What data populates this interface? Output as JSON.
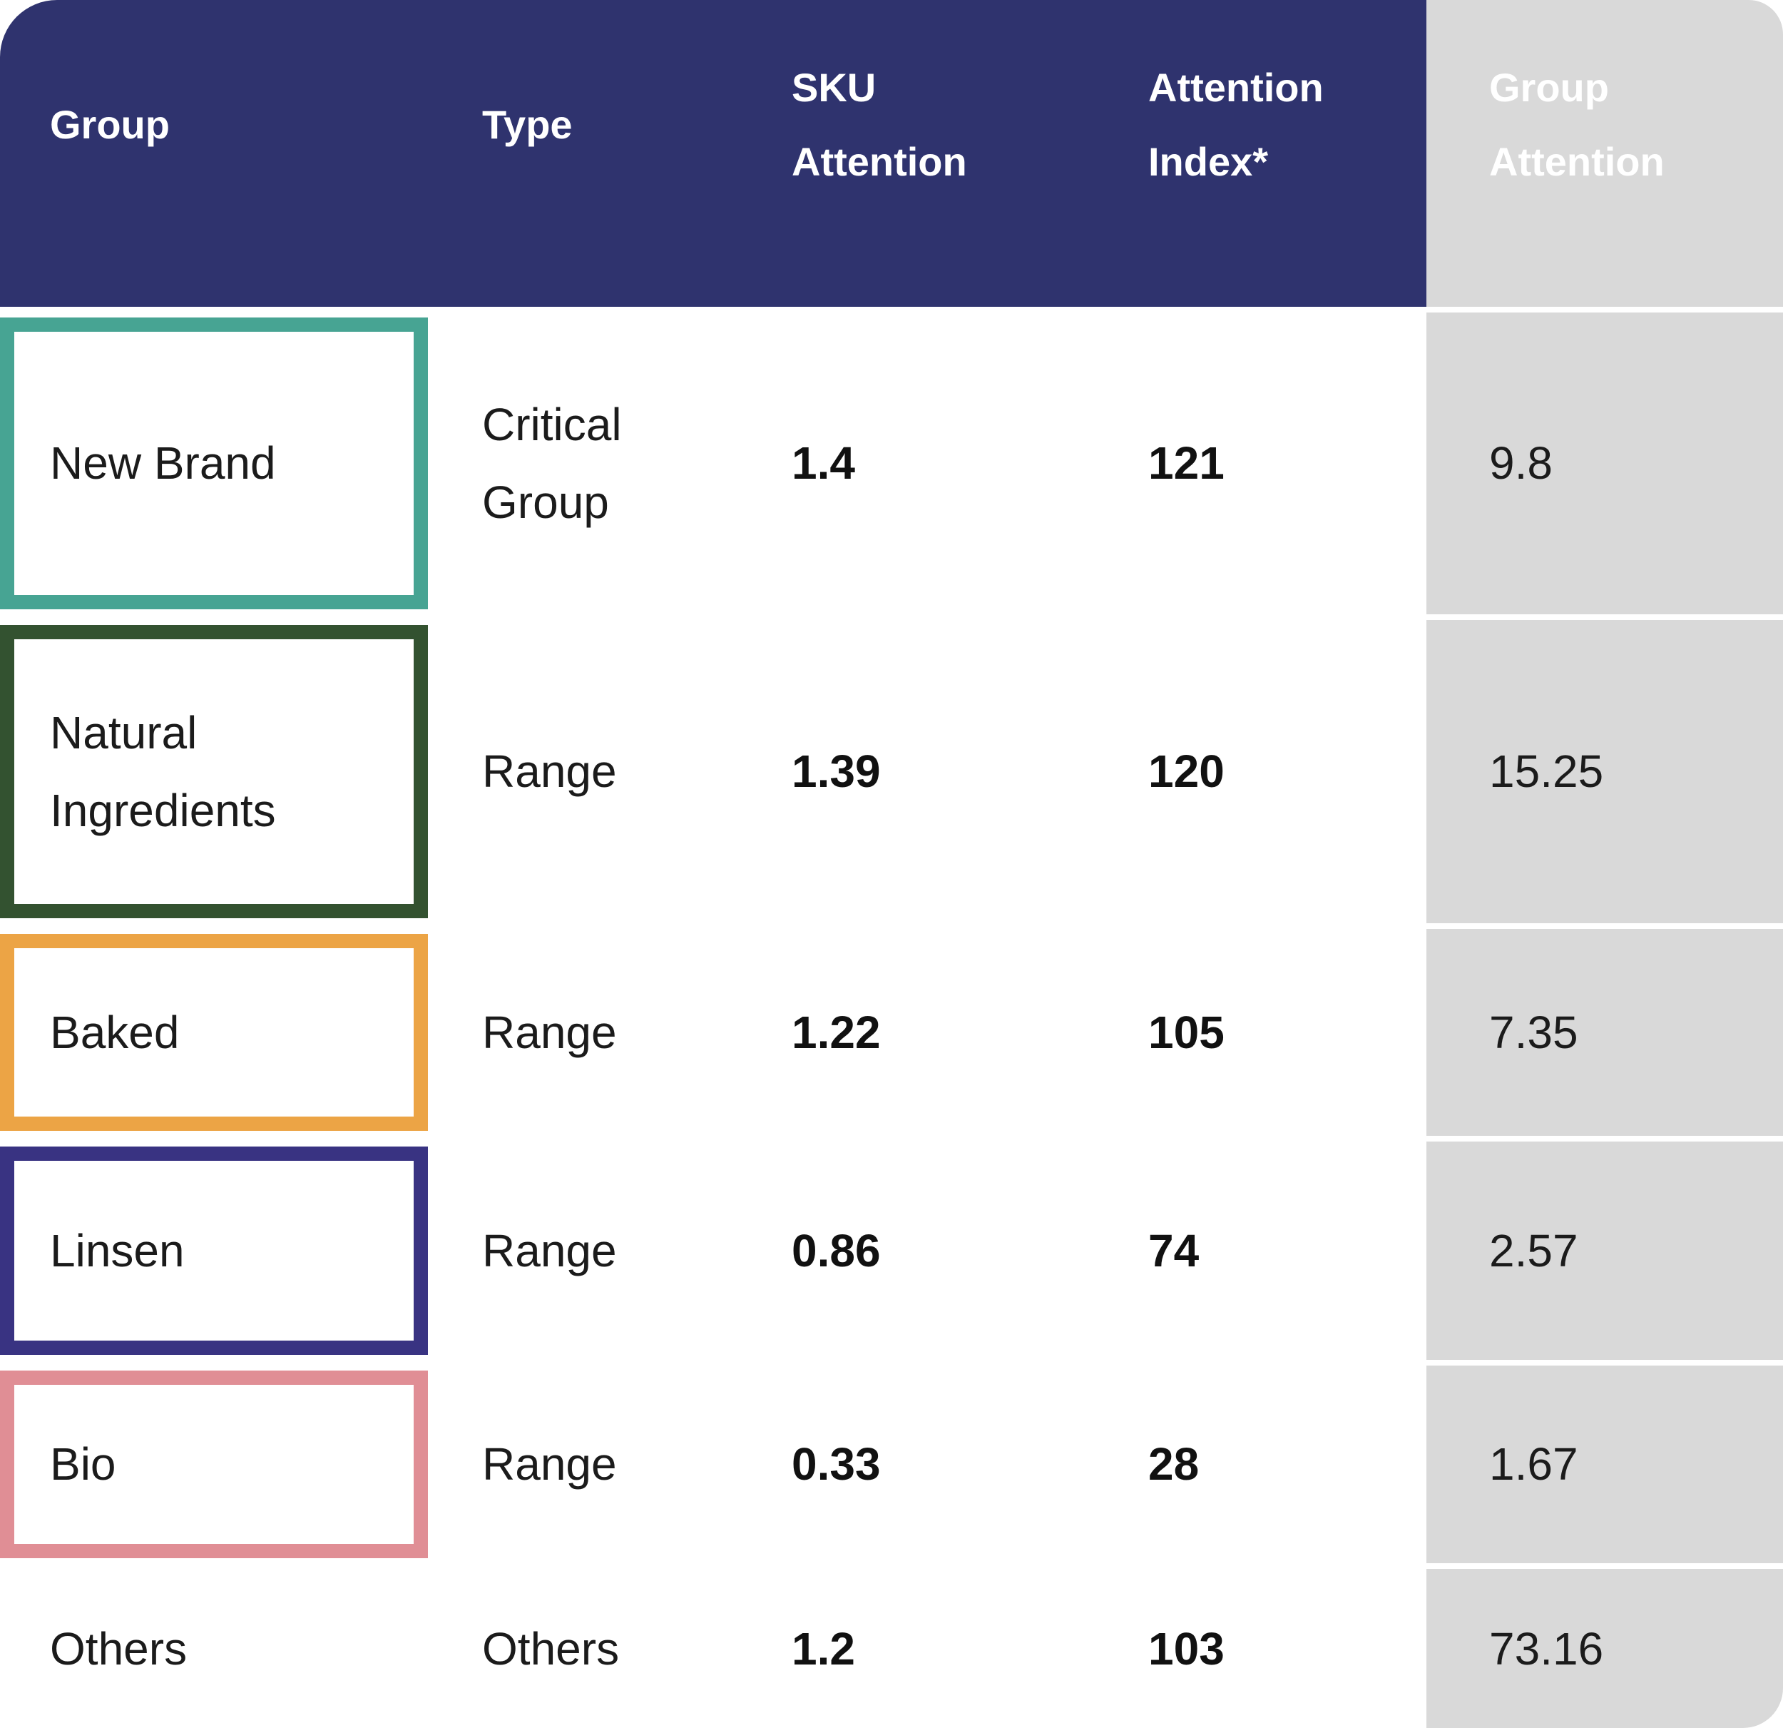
{
  "chart_data": {
    "type": "table",
    "title": "",
    "columns": [
      "Group",
      "Type",
      "SKU Attention",
      "Attention Index*",
      "Group Attention"
    ],
    "rows": [
      {
        "group": "New Brand",
        "type": "Critical Group",
        "sku_attention": "1.4",
        "attention_index": "121",
        "group_attention": "9.8",
        "color": "#47A493"
      },
      {
        "group": "Natural Ingredients",
        "type": "Range",
        "sku_attention": "1.39",
        "attention_index": "120",
        "group_attention": "15.25",
        "color": "#335230"
      },
      {
        "group": "Baked",
        "type": "Range",
        "sku_attention": "1.22",
        "attention_index": "105",
        "group_attention": "7.35",
        "color": "#ECA445"
      },
      {
        "group": "Linsen",
        "type": "Range",
        "sku_attention": "0.86",
        "attention_index": "74",
        "group_attention": "2.57",
        "color": "#393382"
      },
      {
        "group": "Bio",
        "type": "Range",
        "sku_attention": "0.33",
        "attention_index": "28",
        "group_attention": "1.67",
        "color": "#E08E95"
      },
      {
        "group": "Others",
        "type": "Others",
        "sku_attention": "1.2",
        "attention_index": "103",
        "group_attention": "73.16",
        "color": null
      }
    ]
  },
  "header": {
    "col_group": "Group",
    "col_type": "Type",
    "col_sku_attention": "SKU Attention",
    "col_attention_index": "Attention Index*",
    "col_group_attention": "Group Attention"
  },
  "colors": {
    "header_bg": "#2F336E",
    "header_text": "#FFFFFF",
    "group_attention_column_bg": "#D9D9D9",
    "body_text": "#1B1B1B"
  }
}
